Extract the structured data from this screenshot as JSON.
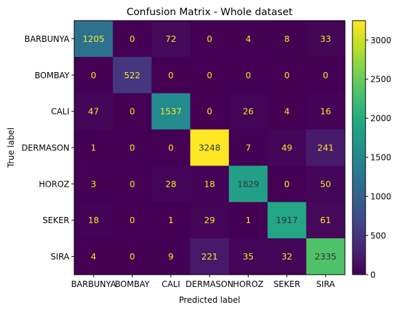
{
  "chart_data": {
    "type": "heatmap",
    "title": "Confusion Matrix - Whole dataset",
    "xlabel": "Predicted label",
    "ylabel": "True label",
    "categories": [
      "BARBUNYA",
      "BOMBAY",
      "CALI",
      "DERMASON",
      "HOROZ",
      "SEKER",
      "SIRA"
    ],
    "matrix": [
      [
        1205,
        0,
        72,
        0,
        4,
        8,
        33
      ],
      [
        0,
        522,
        0,
        0,
        0,
        0,
        0
      ],
      [
        47,
        0,
        1537,
        0,
        26,
        4,
        16
      ],
      [
        1,
        0,
        0,
        3248,
        7,
        49,
        241
      ],
      [
        3,
        0,
        28,
        18,
        1829,
        0,
        50
      ],
      [
        18,
        0,
        1,
        29,
        1,
        1917,
        61
      ],
      [
        4,
        0,
        9,
        221,
        35,
        32,
        2335
      ]
    ],
    "colormap": "viridis",
    "colorbar": {
      "min": 0,
      "max": 3248,
      "ticks": [
        0,
        500,
        1000,
        1500,
        2000,
        2500,
        3000
      ]
    },
    "text_color_low": "#fde725",
    "text_color_high": "#333333"
  }
}
